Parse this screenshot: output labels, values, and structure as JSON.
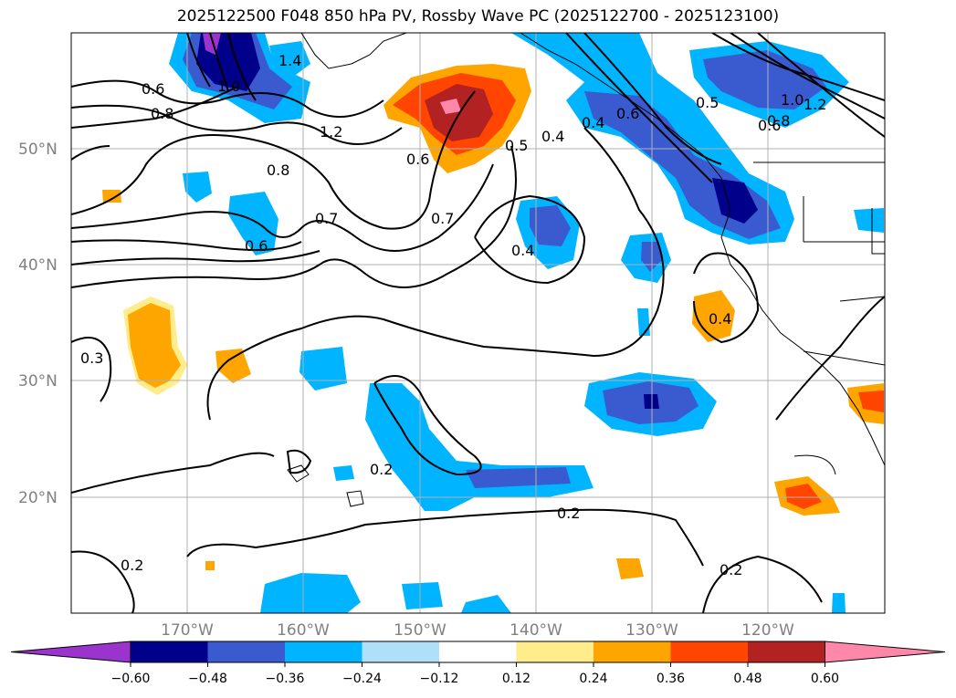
{
  "title": "2025122500 F048 850 hPa PV, Rossby Wave PC (2025122700 - 2025123100)",
  "lat_labels": [
    "50°N",
    "40°N",
    "30°N",
    "20°N"
  ],
  "lon_labels": [
    "170°W",
    "160°W",
    "150°W",
    "140°W",
    "130°W",
    "120°W"
  ],
  "contour_labels": [
    "0.6",
    "0.8",
    "1.0",
    "1.4",
    "1.2",
    "0.8",
    "0.7",
    "0.6",
    "0.6",
    "0.7",
    "0.5",
    "0.4",
    "0.4",
    "0.4",
    "0.6",
    "0.5",
    "1.0",
    "1.2",
    "0.8",
    "0.6",
    "0.3",
    "0.4",
    "0.2",
    "0.2",
    "0.2",
    "0.2"
  ],
  "colorbar": {
    "ticks": [
      "−0.60",
      "−0.48",
      "−0.36",
      "−0.24",
      "−0.12",
      "0.12",
      "0.24",
      "0.36",
      "0.48",
      "0.60"
    ],
    "colors": [
      "#9a34cc",
      "#00008b",
      "#3a5bd0",
      "#00b4ff",
      "#aee0fa",
      "#ffffff",
      "#ffec8b",
      "#ffa500",
      "#ff4500",
      "#b22222",
      "#ff88aa"
    ]
  }
}
